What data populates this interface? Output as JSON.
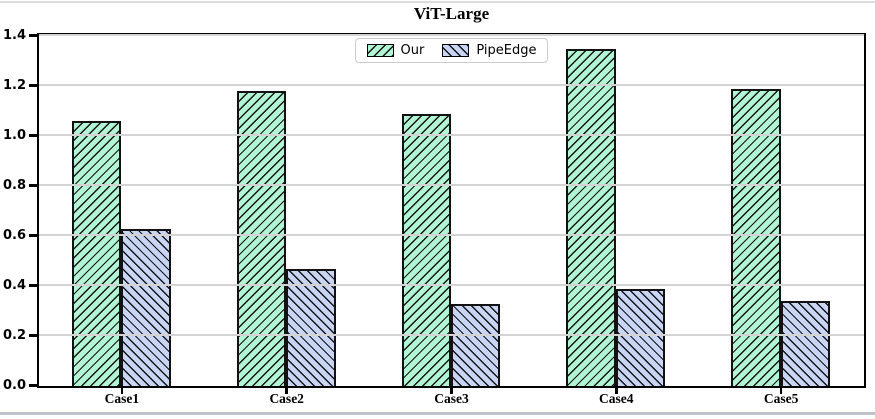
{
  "page": {
    "top_divider_color": "#dcdcde",
    "bottom_divider_color": "#bfc3ca",
    "background": "#ffffff"
  },
  "chart_data": {
    "type": "bar",
    "title": "ViT-Large",
    "categories": [
      "Case1",
      "Case2",
      "Case3",
      "Case4",
      "Case5"
    ],
    "series": [
      {
        "name": "Our",
        "fill": "#b2f5d5",
        "hatch": "/",
        "values": [
          1.06,
          1.18,
          1.09,
          1.35,
          1.19
        ]
      },
      {
        "name": "PipeEdge",
        "fill": "#c9d5f5",
        "hatch": "\\",
        "values": [
          0.63,
          0.47,
          0.33,
          0.39,
          0.34
        ]
      }
    ],
    "xlabel": "",
    "ylabel": "",
    "ylim": [
      0,
      1.4
    ],
    "ytick_values": [
      0.0,
      0.2,
      0.4,
      0.6,
      0.8,
      1.0,
      1.2,
      1.4
    ],
    "ytick_labels": [
      "0.0",
      "0.2",
      "0.4",
      "0.6",
      "0.8",
      "1.0",
      "1.2",
      "1.4"
    ],
    "grid": true,
    "gridline_color": "#d3d3d3",
    "bar_edge_color": "#121212",
    "bar_width_fraction": 0.3,
    "legend_position": "top-center"
  }
}
